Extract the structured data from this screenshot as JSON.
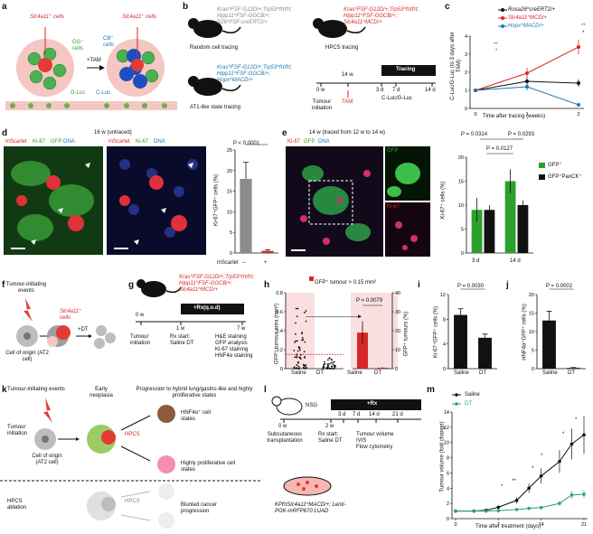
{
  "colors": {
    "red": "#d62728",
    "green": "#2ca02c",
    "blue": "#1f77b4",
    "black": "#111111",
    "grey": "#8c8c8c",
    "pink": "#f6c9cc",
    "teal": "#2a9d8f"
  },
  "a": {
    "label": "a",
    "slc": "Slc4a11⁺ cells",
    "gg": "GG⁺ cells",
    "cb": "CB⁺ cells",
    "tam": "+TAM",
    "gluc": "G-Luc",
    "cluc": "C-Luc",
    "slc2": "Slc4a11⁺ cells"
  },
  "b": {
    "label": "b",
    "random": {
      "l1": "Kras^FSF-G12D/+;Trp53^frt/frt;",
      "l2": "Hipp11^FSF-GGCB/+;",
      "l3": "R26^FSF-creERT2/+",
      "caption": "Random cell tracing"
    },
    "hpcs": {
      "l1": "Kras^FSF-G12D/+;Trp53^frt/frt;",
      "l2": "Hipp11^FSF-GGCB/+;",
      "l3": "Slc4a11^MCD/+",
      "caption": "HPCS tracing"
    },
    "at1": {
      "l1": "Kras^FSF-G12D/+;Trp53^frt/frt;",
      "l2": "Hipp11^FSF-GGCB/+;",
      "l3": "Hopx^MACD/+",
      "caption": "AT1-like state tracing"
    },
    "timeline": {
      "tracing": "Tracing",
      "t0": "0 w",
      "t14": "14 w",
      "d3": "3 d",
      "d7": "7 d",
      "d14": "14 d",
      "init": "Tumour initiation",
      "tam": "TAM",
      "readout": "C-Luc/G-Luc"
    }
  },
  "c": {
    "label": "c",
    "ylabel": "C-Luc/G-Luc (to 3 days after TAM)",
    "xlabel": "Time after tracing (weeks)",
    "legend": [
      "Rosa26^creERT2/+",
      "Slc4a11^MCD/+",
      "Hopx^MACD/+"
    ],
    "stars": [
      "**",
      "*",
      "**",
      "*"
    ]
  },
  "d": {
    "label": "d",
    "title": "16 w (untraced)",
    "m1": "mScarlet",
    "m2": "Ki-67",
    "m3": "GFP",
    "m4": "DNA",
    "n1": "mScarlet",
    "n2": "Ki-67",
    "n3": "DNA",
    "p": "P < 0.0001",
    "ylabel": "Ki-67⁺GFP⁺ cells (%)",
    "xlab": "mScarlet",
    "minus": "–",
    "plus": "+"
  },
  "e": {
    "label": "e",
    "title": "14 w (traced from 12 w to 14 w)",
    "m1": "Ki-67",
    "m2": "GFP",
    "m3": "DNA",
    "inset1": "GFP",
    "inset2": "Ki-67",
    "p1": "P = 0.0314",
    "p2": "P = 0.0293",
    "p3": "P = 0.0127",
    "ylabel": "Ki-67⁺ cells (%)",
    "leg1": "GFP⁺",
    "leg2": "GFP⁺PanCK⁺",
    "x1": "3 d",
    "x2": "14 d"
  },
  "f": {
    "label": "f",
    "events": "Tumour-initiating events",
    "slc": "Slc4a11⁺ cells",
    "dt": "+DT",
    "origin": "Cell of origin (AT2 cell)"
  },
  "g": {
    "label": "g",
    "l1": "Kras^FSF-G12D/+;Trp53^frt/frt;",
    "l2": "Hipp11^FSF-GGCB/+;",
    "l3": "Slc4a11^MCD/+",
    "rx": "+Rx(q.o.d)",
    "t0": "0 w",
    "t1": "1 w",
    "t7": "7 w",
    "init": "Tumour initiation",
    "rxstart": "Rx start: Saline DT",
    "r1": "H&E staining",
    "r2": "GFP analysis",
    "r3": "Ki-67 staining",
    "r4": "HNF4α staining"
  },
  "h": {
    "label": "h",
    "legend": "GFP⁺ tumour > 0.15 mm²",
    "ylabel": "GFP⁺ tumour area (mm²)",
    "ylabel2": "GFP⁺ tumours (%)",
    "p": "P = 0.0079",
    "x": [
      "Saline",
      "DT",
      "Saline",
      "DT"
    ]
  },
  "i": {
    "label": "i",
    "p": "P = 0.0030",
    "ylabel": "Ki-67⁺GFP⁺ cells (%)",
    "x": [
      "Saline",
      "DT"
    ]
  },
  "j": {
    "label": "j",
    "p": "P = 0.0002",
    "ylabel": "HNF4α⁺GFP⁺ cells (%)",
    "x": [
      "Saline",
      "DT"
    ]
  },
  "k": {
    "label": "k",
    "events": "Tumour-initiating events",
    "early": "Early neoplasia",
    "progression": "Progression to hybrid lung/gastric-like and highly proliferative states",
    "init": "Tumour initiation",
    "origin": "Cell of origin (AT2 cell)",
    "hpcs": "HPCS",
    "hnf": "HNF4α⁺ cell states",
    "prolif": "Highly proliferative cell states",
    "ablation": "HPCS ablation",
    "hpcs2": "HPCS",
    "blunted": "Blunted cancer progression"
  },
  "l": {
    "label": "l",
    "nsg": "NSG",
    "rx": "+Rx",
    "t0": "0 w",
    "t2": "2 w",
    "ticks": [
      "3 d",
      "7 d",
      "14 d",
      "21 d"
    ],
    "sub": "Subcutaneous transplantation",
    "rxstart": "Rx start: Saline DT",
    "r1": "Tumour volume",
    "r2": "IVIS",
    "r3": "Flow cytometry",
    "cells": "KPfrtSlc4a11^MACD/+; Lenti-PGK-mRFP670 LUAD"
  },
  "m": {
    "label": "m",
    "legend": [
      "Saline",
      "DT"
    ],
    "ylabel": "Tumour volume (fold change)",
    "xlabel": "Time after treatment (days)",
    "stars": [
      "*",
      "**",
      "*",
      "*",
      "*",
      "*"
    ]
  },
  "chart_data": [
    {
      "id": "c",
      "type": "line",
      "x": [
        0,
        1,
        2
      ],
      "xlim": [
        0,
        2
      ],
      "ylim": [
        0,
        4
      ],
      "yticks": [
        0,
        1,
        2,
        3,
        4
      ],
      "xticks": [
        0,
        1,
        2
      ],
      "series": [
        {
          "name": "Rosa26^creERT2/+",
          "color": "#111111",
          "y": [
            1,
            1.5,
            1.4
          ],
          "err": [
            0,
            0.25,
            0.2
          ]
        },
        {
          "name": "Slc4a11^MCD/+",
          "color": "#d62728",
          "y": [
            1,
            1.95,
            3.4
          ],
          "err": [
            0,
            0.3,
            0.4
          ]
        },
        {
          "name": "Hopx^MACD/+",
          "color": "#1f77b4",
          "y": [
            1,
            1.2,
            0.2
          ],
          "err": [
            0,
            0.2,
            0.08
          ]
        }
      ]
    },
    {
      "id": "d",
      "type": "bar",
      "categories": [
        "–",
        "+"
      ],
      "values": [
        18,
        0.5
      ],
      "err": [
        4,
        0.3
      ],
      "ylim": [
        0,
        25
      ],
      "yticks": [
        0,
        5,
        10,
        15,
        20,
        25
      ]
    },
    {
      "id": "e",
      "type": "bar",
      "categories": [
        "3 d",
        "14 d"
      ],
      "series": [
        {
          "name": "GFP⁺",
          "color": "#2ca02c",
          "values": [
            9,
            15
          ],
          "err": [
            2.5,
            2.5
          ]
        },
        {
          "name": "GFP⁺PanCK⁺",
          "color": "#111111",
          "values": [
            9,
            10
          ],
          "err": [
            1,
            1
          ]
        }
      ],
      "ylim": [
        0,
        20
      ],
      "yticks": [
        0,
        5,
        10,
        15,
        20
      ]
    },
    {
      "id": "h-left",
      "type": "scatter",
      "categories": [
        "Saline",
        "DT"
      ],
      "ylim": [
        0,
        0.8
      ],
      "yticks": [
        0,
        0.2,
        0.4,
        0.6,
        0.8
      ],
      "threshold": 0.15
    },
    {
      "id": "h-right",
      "type": "bar",
      "categories": [
        "Saline",
        "DT"
      ],
      "values": [
        19,
        0.5
      ],
      "err": [
        6,
        0.3
      ],
      "ylim": [
        0,
        40
      ],
      "yticks": [
        0,
        10,
        20,
        30,
        40
      ]
    },
    {
      "id": "i",
      "type": "bar",
      "categories": [
        "Saline",
        "DT"
      ],
      "values": [
        8.7,
        5
      ],
      "err": [
        1,
        0.6
      ],
      "ylim": [
        0,
        12
      ],
      "yticks": [
        0,
        4,
        8,
        12
      ]
    },
    {
      "id": "j",
      "type": "bar",
      "categories": [
        "Saline",
        "DT"
      ],
      "values": [
        13,
        0.2
      ],
      "err": [
        2.5,
        0.1
      ],
      "ylim": [
        0,
        20
      ],
      "yticks": [
        0,
        5,
        10,
        15,
        20
      ]
    },
    {
      "id": "m",
      "type": "line",
      "x": [
        0,
        3,
        5,
        7,
        10,
        12,
        14,
        17,
        19,
        21
      ],
      "xlim": [
        0,
        21
      ],
      "ylim": [
        0,
        14
      ],
      "yticks": [
        0,
        2,
        4,
        6,
        8,
        10,
        12,
        14
      ],
      "xticks": [
        0,
        7,
        14,
        21
      ],
      "series": [
        {
          "name": "Saline",
          "color": "#111111",
          "y": [
            1,
            1,
            1.1,
            1.5,
            2.4,
            4,
            5.6,
            7.5,
            9.8,
            11
          ],
          "err": [
            0,
            0.1,
            0.1,
            0.2,
            0.4,
            0.6,
            1,
            1.5,
            2,
            2.5
          ]
        },
        {
          "name": "DT",
          "color": "#2a9d8f",
          "y": [
            1,
            1,
            1,
            1.05,
            1.2,
            1.35,
            1.45,
            2,
            3.1,
            3.2
          ],
          "err": [
            0,
            0.1,
            0.1,
            0.1,
            0.1,
            0.1,
            0.2,
            0.3,
            0.5,
            0.5
          ]
        }
      ]
    }
  ]
}
